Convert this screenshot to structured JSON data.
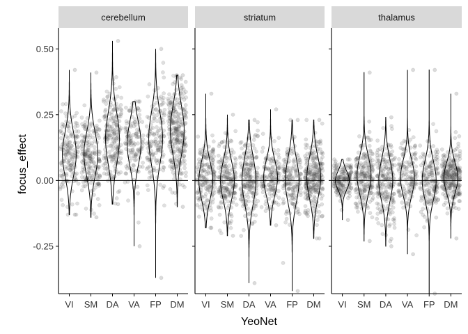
{
  "chart_data": {
    "type": "violin",
    "facet_var": "region",
    "panels": [
      "cerebellum",
      "striatum",
      "thalamus"
    ],
    "categories": [
      "VI",
      "SM",
      "DA",
      "VA",
      "FP",
      "DM"
    ],
    "xlabel": "YeoNet",
    "ylabel": "focus_effect",
    "ylim": [
      -0.43,
      0.58
    ],
    "yticks": [
      -0.25,
      0.0,
      0.25,
      0.5
    ],
    "ytick_labels": [
      "-0.25",
      "0.00",
      "0.25",
      "0.50"
    ],
    "hline": 0.0,
    "grid": false,
    "legend": "none",
    "distributions": [
      {
        "panel": "cerebellum",
        "groups": [
          {
            "cat": "VI",
            "min": -0.13,
            "max": 0.42,
            "mode": 0.1,
            "sd": 0.08,
            "n": 160
          },
          {
            "cat": "SM",
            "min": -0.14,
            "max": 0.41,
            "mode": 0.1,
            "sd": 0.08,
            "n": 190
          },
          {
            "cat": "DA",
            "min": -0.09,
            "max": 0.53,
            "mode": 0.16,
            "sd": 0.095,
            "n": 200
          },
          {
            "cat": "VA",
            "min": -0.25,
            "max": 0.3,
            "mode": 0.14,
            "sd": 0.08,
            "n": 130
          },
          {
            "cat": "FP",
            "min": -0.37,
            "max": 0.5,
            "mode": 0.16,
            "sd": 0.095,
            "n": 150
          },
          {
            "cat": "DM",
            "min": -0.1,
            "max": 0.4,
            "mode": 0.19,
            "sd": 0.09,
            "n": 270
          }
        ]
      },
      {
        "panel": "striatum",
        "groups": [
          {
            "cat": "VI",
            "min": -0.18,
            "max": 0.33,
            "mode": 0.0,
            "sd": 0.07,
            "n": 170
          },
          {
            "cat": "SM",
            "min": -0.21,
            "max": 0.25,
            "mode": 0.0,
            "sd": 0.07,
            "n": 190
          },
          {
            "cat": "DA",
            "min": -0.39,
            "max": 0.23,
            "mode": 0.0,
            "sd": 0.085,
            "n": 200
          },
          {
            "cat": "VA",
            "min": -0.17,
            "max": 0.27,
            "mode": 0.01,
            "sd": 0.065,
            "n": 140
          },
          {
            "cat": "FP",
            "min": -0.42,
            "max": 0.23,
            "mode": 0.0,
            "sd": 0.08,
            "n": 160
          },
          {
            "cat": "DM",
            "min": -0.22,
            "max": 0.23,
            "mode": 0.01,
            "sd": 0.075,
            "n": 260
          }
        ]
      },
      {
        "panel": "thalamus",
        "groups": [
          {
            "cat": "VI",
            "min": -0.15,
            "max": 0.08,
            "mode": 0.0,
            "sd": 0.035,
            "n": 170
          },
          {
            "cat": "SM",
            "min": -0.23,
            "max": 0.41,
            "mode": 0.02,
            "sd": 0.07,
            "n": 200
          },
          {
            "cat": "DA",
            "min": -0.25,
            "max": 0.24,
            "mode": 0.0,
            "sd": 0.075,
            "n": 200
          },
          {
            "cat": "VA",
            "min": -0.28,
            "max": 0.42,
            "mode": 0.01,
            "sd": 0.065,
            "n": 140
          },
          {
            "cat": "FP",
            "min": -0.43,
            "max": 0.42,
            "mode": 0.0,
            "sd": 0.07,
            "n": 160
          },
          {
            "cat": "DM",
            "min": -0.22,
            "max": 0.33,
            "mode": 0.01,
            "sd": 0.055,
            "n": 270
          }
        ]
      }
    ],
    "colors": {
      "strip": "#d9d9d9",
      "point": "#4d4d4d",
      "violin": "#000000",
      "axis": "#000000"
    }
  }
}
